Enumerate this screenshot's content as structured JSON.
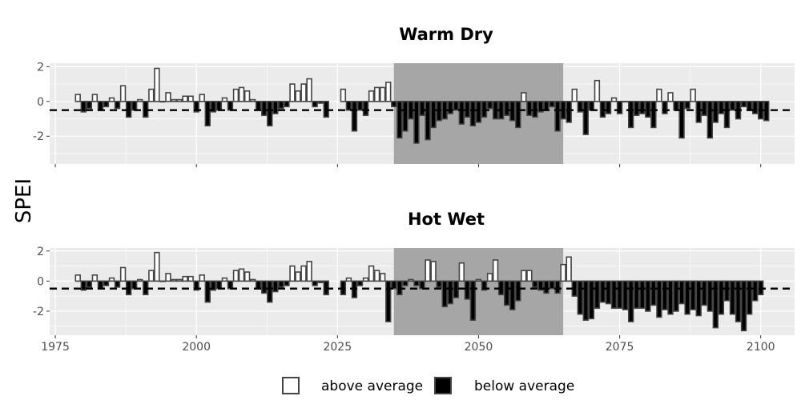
{
  "chart_data": {
    "type": "bar",
    "ylabel": "SPEI",
    "x_ticks": [
      1975,
      2000,
      2025,
      2050,
      2075,
      2100
    ],
    "y_ticks": [
      -2,
      0,
      2
    ],
    "xlim": [
      1974,
      2106
    ],
    "threshold": -0.5,
    "highlight_range": [
      2035,
      2065
    ],
    "legend": {
      "position": "bottom",
      "items": [
        {
          "label": "above average",
          "fill": "#ffffff",
          "stroke": "#444444"
        },
        {
          "label": "below average",
          "fill": "#000000",
          "stroke": "#444444"
        }
      ]
    },
    "colors": {
      "panel_bg": "#ebebeb",
      "grid": "#ffffff",
      "highlight": "#a6a6a6",
      "bar_stroke": "#444444"
    },
    "panels": [
      {
        "title": "Warm Dry",
        "ylim": [
          -3.6,
          2.2
        ],
        "start_year": 1979,
        "values": [
          0.4,
          -0.6,
          -0.4,
          0.4,
          -0.5,
          -0.3,
          0.2,
          -0.4,
          0.9,
          -0.9,
          -0.5,
          0.1,
          -0.9,
          0.7,
          1.9,
          0.0,
          0.5,
          0.1,
          0.1,
          0.3,
          0.3,
          -0.6,
          0.4,
          -1.4,
          -0.6,
          -0.5,
          0.2,
          -0.5,
          0.7,
          0.8,
          0.6,
          0.1,
          -0.5,
          -0.8,
          -1.4,
          -0.7,
          -0.4,
          -0.3,
          1.0,
          0.6,
          1.0,
          1.3,
          -0.3,
          -0.1,
          -0.9,
          null,
          null,
          0.7,
          -0.5,
          -1.7,
          -0.5,
          -0.8,
          0.6,
          0.8,
          0.8,
          1.1,
          -0.3,
          -2.1,
          -1.7,
          -1.0,
          -2.4,
          -0.8,
          -2.2,
          -1.5,
          -1.1,
          -1.0,
          -0.7,
          -0.5,
          -1.3,
          -0.9,
          -1.4,
          -1.2,
          -0.9,
          -0.4,
          -1.0,
          -1.0,
          -0.8,
          -1.1,
          -1.5,
          0.5,
          -0.8,
          -0.9,
          -0.6,
          -0.5,
          -0.3,
          -1.7,
          -1.0,
          -1.2,
          0.7,
          -0.6,
          -1.9,
          -0.5,
          1.2,
          -0.9,
          -0.7,
          0.2,
          -0.7,
          0.0,
          -1.5,
          -0.8,
          -0.7,
          -0.9,
          -1.5,
          0.7,
          -0.7,
          0.5,
          -0.5,
          -2.1,
          -0.4,
          0.7,
          -1.2,
          -0.8,
          -2.1,
          -1.2,
          -0.7,
          -1.5,
          -0.5,
          -1.0,
          -0.3,
          -0.5,
          -0.7,
          -1.0,
          -1.1
        ]
      },
      {
        "title": "Hot Wet",
        "ylim": [
          -3.6,
          2.2
        ],
        "start_year": 1979,
        "values": [
          0.4,
          -0.6,
          -0.4,
          0.4,
          -0.5,
          -0.3,
          0.2,
          -0.4,
          0.9,
          -0.9,
          -0.5,
          0.1,
          -0.9,
          0.7,
          1.9,
          0.0,
          0.5,
          0.1,
          0.1,
          0.3,
          0.3,
          -0.6,
          0.4,
          -1.4,
          -0.6,
          -0.5,
          0.2,
          -0.5,
          0.7,
          0.8,
          0.6,
          0.1,
          -0.5,
          -0.8,
          -1.4,
          -0.7,
          -0.4,
          -0.3,
          1.0,
          0.6,
          1.0,
          1.3,
          -0.3,
          -0.1,
          -0.9,
          null,
          null,
          -0.9,
          0.2,
          -1.1,
          -0.3,
          0.2,
          1.0,
          0.7,
          0.5,
          -2.7,
          -0.5,
          -0.9,
          -0.3,
          0.1,
          -0.3,
          -0.5,
          1.4,
          1.3,
          -0.4,
          -1.7,
          -1.5,
          -1.1,
          1.2,
          -1.2,
          -2.6,
          0.1,
          -0.6,
          0.5,
          1.4,
          -0.9,
          -1.6,
          -1.9,
          -1.3,
          0.7,
          0.7,
          -0.4,
          -0.6,
          -0.8,
          -0.5,
          -0.8,
          1.1,
          1.6,
          -1.0,
          -2.2,
          -2.6,
          -2.5,
          -1.8,
          -1.4,
          -1.5,
          -1.8,
          -1.8,
          -1.9,
          -2.7,
          -1.8,
          -1.8,
          -2.0,
          -1.6,
          -2.4,
          -1.9,
          -2.2,
          -2.0,
          -1.5,
          -2.2,
          -1.9,
          -2.3,
          -1.6,
          -2.0,
          -3.1,
          -2.2,
          -1.3,
          -2.2,
          -2.7,
          -3.3,
          -2.2,
          -1.3,
          -0.9
        ]
      }
    ]
  }
}
